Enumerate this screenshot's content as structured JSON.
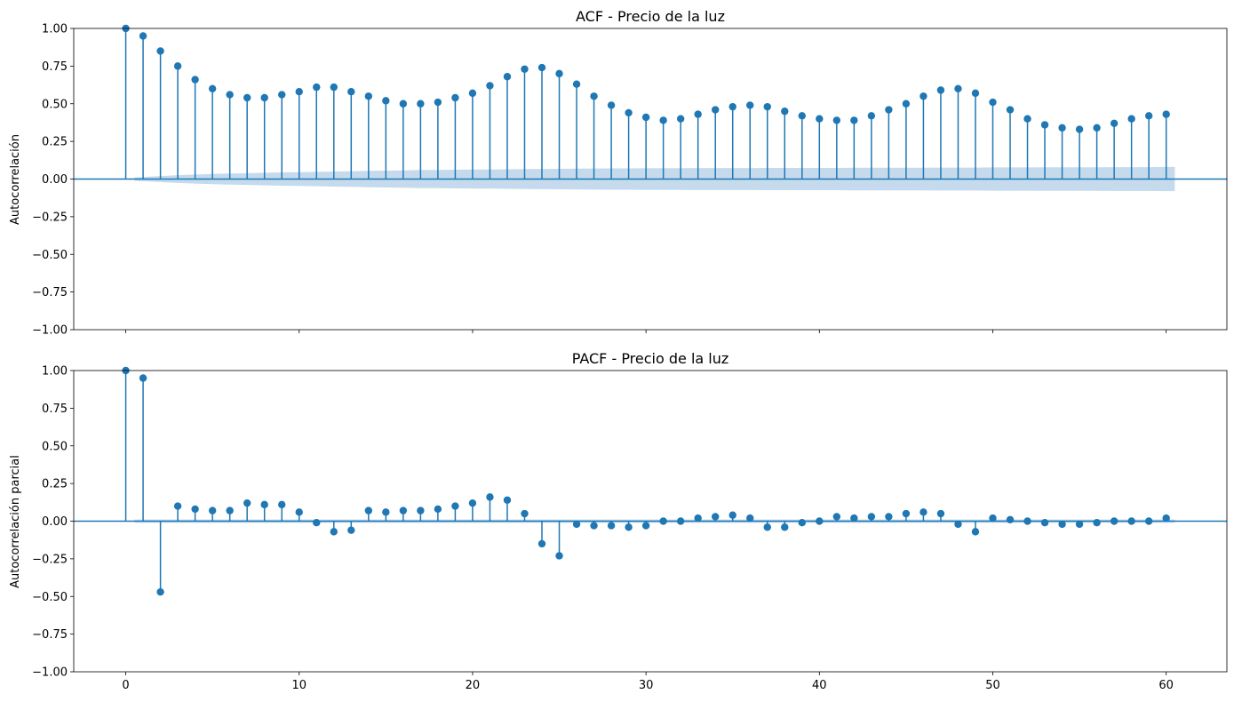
{
  "colors": {
    "stem": "#1f77b4",
    "band": "#a6c8e3",
    "axis": "#000000"
  },
  "chart_data": [
    {
      "type": "stem",
      "title": "ACF - Precio de la luz",
      "ylabel": "Autocorrelación",
      "xlabel": "",
      "xlim": [
        -3,
        63.5
      ],
      "ylim": [
        -1,
        1
      ],
      "yticks": [
        -1.0,
        -0.75,
        -0.5,
        -0.25,
        0.0,
        0.25,
        0.5,
        0.75,
        1.0
      ],
      "ytick_labels": [
        "−1.00",
        "−0.75",
        "−0.50",
        "−0.25",
        "0.00",
        "0.25",
        "0.50",
        "0.75",
        "1.00"
      ],
      "xticks": [
        0,
        10,
        20,
        30,
        40,
        50,
        60
      ],
      "xtick_labels": [],
      "lags": [
        0,
        1,
        2,
        3,
        4,
        5,
        6,
        7,
        8,
        9,
        10,
        11,
        12,
        13,
        14,
        15,
        16,
        17,
        18,
        19,
        20,
        21,
        22,
        23,
        24,
        25,
        26,
        27,
        28,
        29,
        30,
        31,
        32,
        33,
        34,
        35,
        36,
        37,
        38,
        39,
        40,
        41,
        42,
        43,
        44,
        45,
        46,
        47,
        48,
        49,
        50,
        51,
        52,
        53,
        54,
        55,
        56,
        57,
        58,
        59,
        60
      ],
      "values": [
        1.0,
        0.95,
        0.85,
        0.75,
        0.66,
        0.6,
        0.56,
        0.54,
        0.54,
        0.56,
        0.58,
        0.61,
        0.61,
        0.58,
        0.55,
        0.52,
        0.5,
        0.5,
        0.51,
        0.54,
        0.57,
        0.62,
        0.68,
        0.73,
        0.74,
        0.7,
        0.63,
        0.55,
        0.49,
        0.44,
        0.41,
        0.39,
        0.4,
        0.43,
        0.46,
        0.48,
        0.49,
        0.48,
        0.45,
        0.42,
        0.4,
        0.39,
        0.39,
        0.42,
        0.46,
        0.5,
        0.55,
        0.59,
        0.6,
        0.57,
        0.51,
        0.46,
        0.4,
        0.36,
        0.34,
        0.33,
        0.34,
        0.37,
        0.4,
        0.42,
        0.43
      ],
      "confint": [
        0.0,
        0.011,
        0.02,
        0.026,
        0.03,
        0.034,
        0.037,
        0.039,
        0.042,
        0.044,
        0.046,
        0.048,
        0.05,
        0.052,
        0.054,
        0.056,
        0.058,
        0.06,
        0.061,
        0.062,
        0.063,
        0.064,
        0.065,
        0.066,
        0.067,
        0.068,
        0.069,
        0.07,
        0.071,
        0.071,
        0.072,
        0.072,
        0.072,
        0.073,
        0.073,
        0.073,
        0.073,
        0.074,
        0.074,
        0.074,
        0.074,
        0.074,
        0.075,
        0.075,
        0.075,
        0.075,
        0.075,
        0.076,
        0.076,
        0.076,
        0.077,
        0.077,
        0.077,
        0.078,
        0.078,
        0.078,
        0.078,
        0.079,
        0.079,
        0.079,
        0.08
      ]
    },
    {
      "type": "stem",
      "title": "PACF - Precio de la luz",
      "ylabel": "Autocorrelación parcial",
      "xlabel": "",
      "xlim": [
        -3,
        63.5
      ],
      "ylim": [
        -1,
        1
      ],
      "yticks": [
        -1.0,
        -0.75,
        -0.5,
        -0.25,
        0.0,
        0.25,
        0.5,
        0.75,
        1.0
      ],
      "ytick_labels": [
        "−1.00",
        "−0.75",
        "−0.50",
        "−0.25",
        "0.00",
        "0.25",
        "0.50",
        "0.75",
        "1.00"
      ],
      "xticks": [
        0,
        10,
        20,
        30,
        40,
        50,
        60
      ],
      "xtick_labels": [
        "0",
        "10",
        "20",
        "30",
        "40",
        "50",
        "60"
      ],
      "lags": [
        0,
        1,
        2,
        3,
        4,
        5,
        6,
        7,
        8,
        9,
        10,
        11,
        12,
        13,
        14,
        15,
        16,
        17,
        18,
        19,
        20,
        21,
        22,
        23,
        24,
        25,
        26,
        27,
        28,
        29,
        30,
        31,
        32,
        33,
        34,
        35,
        36,
        37,
        38,
        39,
        40,
        41,
        42,
        43,
        44,
        45,
        46,
        47,
        48,
        49,
        50,
        51,
        52,
        53,
        54,
        55,
        56,
        57,
        58,
        59,
        60
      ],
      "values": [
        1.0,
        0.95,
        -0.47,
        0.1,
        0.08,
        0.07,
        0.07,
        0.12,
        0.11,
        0.11,
        0.06,
        -0.01,
        -0.07,
        -0.06,
        0.07,
        0.06,
        0.07,
        0.07,
        0.08,
        0.1,
        0.12,
        0.16,
        0.14,
        0.05,
        -0.15,
        -0.23,
        -0.02,
        -0.03,
        -0.03,
        -0.04,
        -0.03,
        0.0,
        0.0,
        0.02,
        0.03,
        0.04,
        0.02,
        -0.04,
        -0.04,
        -0.01,
        0.0,
        0.03,
        0.02,
        0.03,
        0.03,
        0.05,
        0.06,
        0.05,
        -0.02,
        -0.07,
        0.02,
        0.01,
        0.0,
        -0.01,
        -0.02,
        -0.02,
        -0.01,
        0.0,
        0.0,
        0.0,
        0.02
      ],
      "confint": [
        0.0,
        0.011,
        0.011,
        0.011,
        0.011,
        0.011,
        0.011,
        0.011,
        0.011,
        0.011,
        0.011,
        0.011,
        0.011,
        0.011,
        0.011,
        0.011,
        0.011,
        0.011,
        0.011,
        0.011,
        0.011,
        0.011,
        0.011,
        0.011,
        0.011,
        0.011,
        0.011,
        0.011,
        0.011,
        0.011,
        0.011,
        0.011,
        0.011,
        0.011,
        0.011,
        0.011,
        0.011,
        0.011,
        0.011,
        0.011,
        0.011,
        0.011,
        0.011,
        0.011,
        0.011,
        0.011,
        0.011,
        0.011,
        0.011,
        0.011,
        0.011,
        0.011,
        0.011,
        0.011,
        0.011,
        0.011,
        0.011,
        0.011,
        0.011,
        0.011,
        0.011
      ]
    }
  ]
}
